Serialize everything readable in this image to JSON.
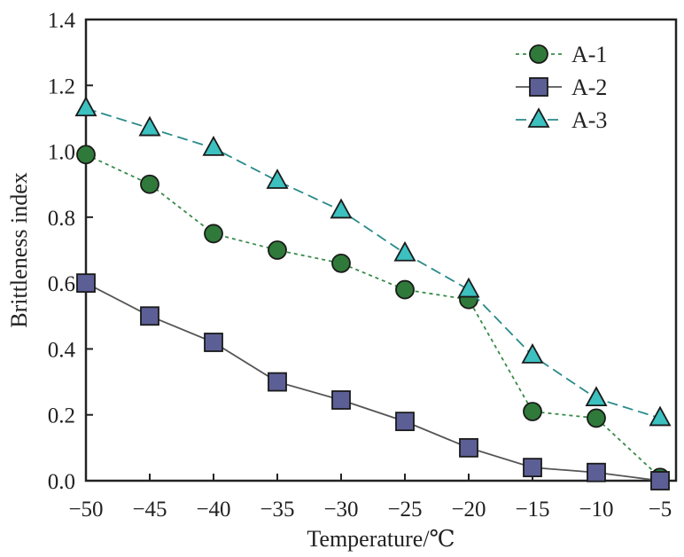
{
  "chart_data": {
    "type": "line",
    "title": "",
    "xlabel": "Temperature/℃",
    "ylabel": "Brittleness index",
    "xlim": [
      -50,
      -5
    ],
    "ylim": [
      0,
      1.4
    ],
    "x": [
      -50,
      -45,
      -40,
      -35,
      -30,
      -25,
      -20,
      -15,
      -10,
      -5
    ],
    "xticks": [
      "−50",
      "−45",
      "−40",
      "−35",
      "−30",
      "−25",
      "−20",
      "−15",
      "−10",
      "−5"
    ],
    "yticks": [
      "0.0",
      "0.2",
      "0.4",
      "0.6",
      "0.8",
      "1.0",
      "1.2",
      "1.4"
    ],
    "legend_position": "top-right",
    "grid": false,
    "series": [
      {
        "name": "A-1",
        "marker": "circle",
        "line": "dotted",
        "color": "#2f7a3a",
        "line_color": "#3a8a4a",
        "values": [
          0.99,
          0.9,
          0.75,
          0.7,
          0.66,
          0.58,
          0.55,
          0.21,
          0.19,
          0.01
        ]
      },
      {
        "name": "A-2",
        "marker": "square",
        "line": "solid",
        "color": "#5c5f96",
        "line_color": "#555555",
        "values": [
          0.6,
          0.5,
          0.42,
          0.3,
          0.245,
          0.18,
          0.1,
          0.04,
          0.025,
          0.0
        ]
      },
      {
        "name": "A-3",
        "marker": "triangle",
        "line": "dashed",
        "color": "#3cc0c0",
        "line_color": "#2a8a8a",
        "values": [
          1.13,
          1.07,
          1.01,
          0.91,
          0.82,
          0.69,
          0.58,
          0.38,
          0.25,
          0.19
        ]
      }
    ]
  }
}
